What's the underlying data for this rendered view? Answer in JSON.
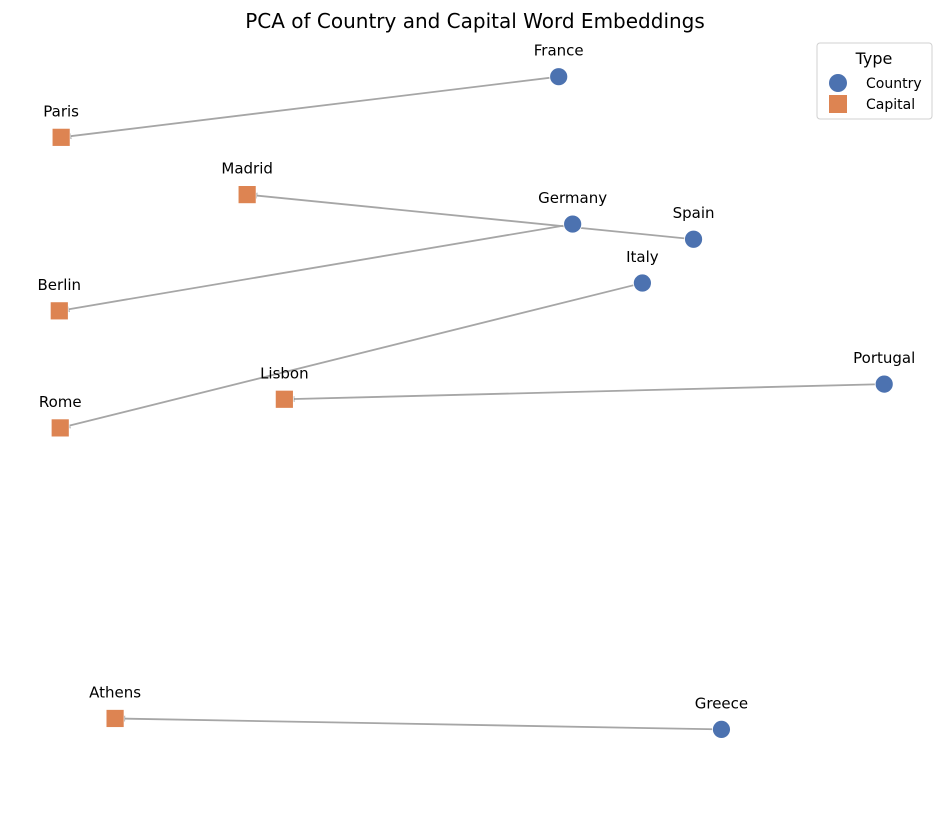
{
  "chart_data": {
    "type": "scatter",
    "title": "PCA of Country and Capital Word Embeddings",
    "xlabel": "",
    "ylabel": "",
    "axes_visible": false,
    "grid": false,
    "xlim": [
      -0.4,
      9.6
    ],
    "ylim": [
      -8.6,
      0.4
    ],
    "legend": {
      "title": "Type",
      "placement": "top-right",
      "entries": [
        {
          "name": "Country",
          "marker": "circle",
          "color": "#4c72b0"
        },
        {
          "name": "Capital",
          "marker": "square",
          "color": "#dd8452"
        }
      ]
    },
    "series": [
      {
        "name": "Country",
        "marker": "circle",
        "color": "#4c72b0",
        "points": [
          {
            "label": "France",
            "x": 5.5,
            "y": 0.0
          },
          {
            "label": "Germany",
            "x": 5.65,
            "y": -1.75
          },
          {
            "label": "Spain",
            "x": 6.95,
            "y": -1.93
          },
          {
            "label": "Italy",
            "x": 6.4,
            "y": -2.45
          },
          {
            "label": "Portugal",
            "x": 9.0,
            "y": -3.65
          },
          {
            "label": "Greece",
            "x": 7.25,
            "y": -7.75
          }
        ]
      },
      {
        "name": "Capital",
        "marker": "square",
        "color": "#dd8452",
        "points": [
          {
            "label": "Paris",
            "x": 0.15,
            "y": -0.72
          },
          {
            "label": "Madrid",
            "x": 2.15,
            "y": -1.4
          },
          {
            "label": "Berlin",
            "x": 0.13,
            "y": -2.78
          },
          {
            "label": "Rome",
            "x": 0.14,
            "y": -4.17
          },
          {
            "label": "Lisbon",
            "x": 2.55,
            "y": -3.83
          },
          {
            "label": "Athens",
            "x": 0.73,
            "y": -7.62
          }
        ]
      }
    ],
    "links": [
      {
        "from": "France",
        "to": "Paris"
      },
      {
        "from": "Germany",
        "to": "Berlin"
      },
      {
        "from": "Spain",
        "to": "Madrid"
      },
      {
        "from": "Italy",
        "to": "Rome"
      },
      {
        "from": "Portugal",
        "to": "Lisbon"
      },
      {
        "from": "Greece",
        "to": "Athens"
      }
    ],
    "link_color": "#a6a6a6"
  }
}
